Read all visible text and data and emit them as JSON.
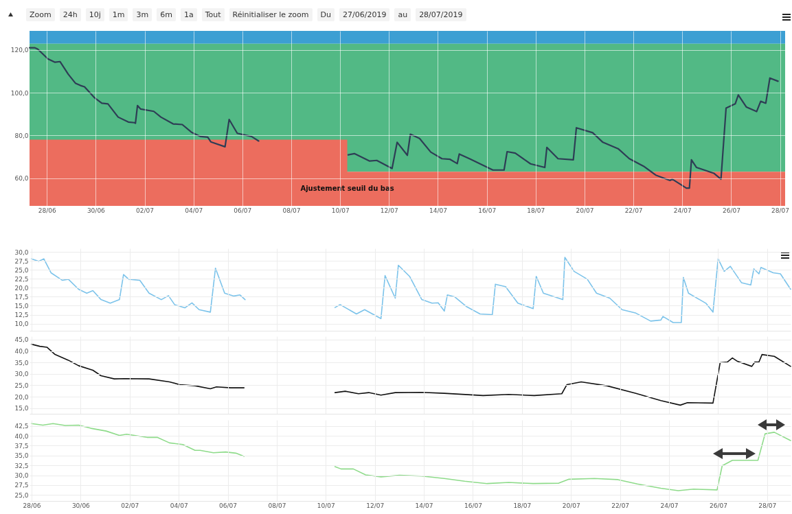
{
  "chart_data": [
    {
      "type": "line",
      "annotations": [
        "Zoom",
        "24h",
        "10j",
        "1m",
        "3m",
        "6m",
        "1a",
        "Tout",
        "Réinitialiser le zoom",
        "Du",
        "27/06/2019",
        "au",
        "28/07/2019"
      ],
      "xlim": [
        "2019-06-27T07:00",
        "2019-07-28T05:00"
      ],
      "xticks": [
        {
          "value": "2019-06-28",
          "label": "28/06"
        },
        {
          "value": "2019-06-30",
          "label": "30/06"
        },
        {
          "value": "2019-07-02",
          "label": "02/07"
        },
        {
          "value": "2019-07-04",
          "label": "04/07"
        },
        {
          "value": "2019-07-06",
          "label": "06/07"
        },
        {
          "value": "2019-07-08",
          "label": "08/07"
        },
        {
          "value": "2019-07-10",
          "label": "10/07"
        },
        {
          "value": "2019-07-12",
          "label": "12/07"
        },
        {
          "value": "2019-07-14",
          "label": "14/07"
        },
        {
          "value": "2019-07-16",
          "label": "16/07"
        },
        {
          "value": "2019-07-18",
          "label": "18/07"
        },
        {
          "value": "2019-07-20",
          "label": "20/07"
        },
        {
          "value": "2019-07-22",
          "label": "22/07"
        },
        {
          "value": "2019-07-24",
          "label": "24/07"
        },
        {
          "value": "2019-07-26",
          "label": "26/07"
        },
        {
          "value": "2019-07-28",
          "label": "28/07"
        }
      ],
      "ylim": [
        47,
        129
      ],
      "yticks": [
        {
          "value": 60,
          "label": "60,0"
        },
        {
          "value": 80,
          "label": "80,0"
        },
        {
          "value": 100,
          "label": "100,0"
        },
        {
          "value": 120,
          "label": "120,0"
        }
      ],
      "grid": true,
      "bands": [
        {
          "axis": "y",
          "from": 123,
          "to": 129,
          "color": "#3c9fd3"
        },
        {
          "axis": "y",
          "from": 63,
          "to": 123,
          "color": "#52b985"
        }
      ],
      "series": [
        {
          "type": "area",
          "name": "Ajustement seuil du bas",
          "color": "#ec6d5e",
          "x": [
            "2019-06-27T07:00",
            "2019-07-10T07:00",
            "2019-07-10T07:00",
            "2019-07-28T05:00"
          ],
          "values": [
            78,
            78,
            63,
            63
          ]
        },
        {
          "color": "#2e3d55",
          "x": [
            "2019-06-27T07:00",
            "2019-06-27T12:00",
            "2019-06-27T15:00",
            "2019-06-28T01:00",
            "2019-06-28T08:00",
            "2019-06-28T13:00",
            "2019-06-28T21:00",
            "2019-06-29T04:00",
            "2019-06-29T09:00",
            "2019-06-29T13:00",
            "2019-06-29T23:00",
            "2019-06-30T06:00",
            "2019-06-30T12:00",
            "2019-06-30T22:00",
            "2019-07-01T08:00",
            "2019-07-01T14:00",
            "2019-07-01T15:00",
            "2019-07-01T17:00",
            "2019-07-01T20:00",
            "2019-07-02T09:00",
            "2019-07-02T16:00",
            "2019-07-03T04:00",
            "2019-07-03T13:00",
            "2019-07-03T22:00",
            "2019-07-04T07:00",
            "2019-07-04T14:00",
            "2019-07-04T17:00",
            "2019-07-05T07:00",
            "2019-07-05T11:00",
            "2019-07-05T19:00",
            "2019-07-06T09:00",
            "2019-07-06T16:00",
            "2019-07-08T12:00",
            "2019-07-10T08:00",
            "2019-07-10T14:00",
            "2019-07-11T05:00",
            "2019-07-11T12:00",
            "2019-07-12T03:00",
            "2019-07-12T08:00",
            "2019-07-12T18:00",
            "2019-07-12T21:00",
            "2019-07-13T06:00",
            "2019-07-13T17:00",
            "2019-07-14T04:00",
            "2019-07-14T12:00",
            "2019-07-14T19:00",
            "2019-07-14T21:00",
            "2019-07-15T07:00",
            "2019-07-16T06:00",
            "2019-07-16T17:00",
            "2019-07-16T20:00",
            "2019-07-17T04:00",
            "2019-07-17T19:00",
            "2019-07-18T09:00",
            "2019-07-18T11:00",
            "2019-07-18T22:00",
            "2019-07-19T13:00",
            "2019-07-19T16:00",
            "2019-07-20T08:00",
            "2019-07-20T18:00",
            "2019-07-21T09:00",
            "2019-07-21T20:00",
            "2019-07-22T10:00",
            "2019-07-22T22:00",
            "2019-07-23T12:00",
            "2019-07-23T14:00",
            "2019-07-24T04:00",
            "2019-07-24T07:00",
            "2019-07-24T09:00",
            "2019-07-24T14:00",
            "2019-07-25T07:00",
            "2019-07-25T14:00",
            "2019-07-25T19:00",
            "2019-07-26T04:00",
            "2019-07-26T07:00",
            "2019-07-26T15:00",
            "2019-07-27T01:00",
            "2019-07-27T05:00",
            "2019-07-27T10:00",
            "2019-07-27T14:00",
            "2019-07-27T22:00"
          ],
          "values": [
            121.1,
            121.1,
            120.5,
            115.9,
            114.3,
            114.6,
            108.7,
            104.5,
            103.4,
            102.8,
            97.6,
            95.1,
            94.8,
            88.6,
            86.3,
            86.0,
            85.7,
            94.0,
            92.4,
            91.3,
            88.6,
            85.4,
            85.1,
            81.5,
            79.5,
            79.2,
            77.0,
            74.7,
            87.5,
            81.0,
            79.5,
            77.4,
            null,
            70.9,
            71.5,
            68.0,
            68.3,
            64.5,
            76.8,
            70.7,
            80.6,
            78.6,
            72.2,
            69.1,
            68.8,
            66.8,
            71.3,
            69.1,
            63.8,
            63.8,
            72.4,
            71.7,
            66.7,
            65.0,
            74.4,
            69.1,
            68.6,
            83.6,
            81.3,
            76.8,
            73.8,
            69.1,
            65.6,
            61.4,
            58.9,
            59.6,
            55.3,
            55.3,
            68.6,
            65.0,
            62.3,
            59.5,
            92.8,
            94.8,
            99.0,
            93.3,
            91.2,
            96.0,
            95.1,
            106.9,
            105.4
          ]
        }
      ]
    },
    {
      "type": "line",
      "tick_labels": "y",
      "grid": true,
      "xlim": [
        "2019-06-27T22:00",
        "2019-07-28T23:00"
      ],
      "xticks": [
        {
          "value": "2019-06-28",
          "label": null
        },
        {
          "value": "2019-06-30",
          "label": null
        },
        {
          "value": "2019-07-02",
          "label": null
        },
        {
          "value": "2019-07-04",
          "label": null
        },
        {
          "value": "2019-07-06",
          "label": null
        },
        {
          "value": "2019-07-08",
          "label": null
        },
        {
          "value": "2019-07-10",
          "label": null
        },
        {
          "value": "2019-07-12",
          "label": null
        },
        {
          "value": "2019-07-14",
          "label": null
        },
        {
          "value": "2019-07-16",
          "label": null
        },
        {
          "value": "2019-07-18",
          "label": null
        },
        {
          "value": "2019-07-20",
          "label": null
        },
        {
          "value": "2019-07-22",
          "label": null
        },
        {
          "value": "2019-07-24",
          "label": null
        },
        {
          "value": "2019-07-26",
          "label": null
        },
        {
          "value": "2019-07-28",
          "label": null
        }
      ],
      "ylim": [
        8,
        31
      ],
      "yticks": [
        {
          "value": 10,
          "label": "10,0"
        },
        {
          "value": 12.5,
          "label": "12,5"
        },
        {
          "value": 15,
          "label": "15,0"
        },
        {
          "value": 17.5,
          "label": "17,5"
        },
        {
          "value": 20,
          "label": "20,0"
        },
        {
          "value": 22.5,
          "label": "22,5"
        },
        {
          "value": 25,
          "label": "25,0"
        },
        {
          "value": 27.5,
          "label": "27,5"
        },
        {
          "value": 30,
          "label": "30,0"
        }
      ],
      "series": [
        {
          "color": "#7cc3ea",
          "x": [
            "2019-06-28T00:00",
            "2019-06-28T07:00",
            "2019-06-28T12:00",
            "2019-06-28T19:00",
            "2019-06-29T06:00",
            "2019-06-29T12:00",
            "2019-06-29T22:00",
            "2019-06-30T06:00",
            "2019-06-30T12:00",
            "2019-06-30T20:00",
            "2019-07-01T05:00",
            "2019-07-01T14:00",
            "2019-07-01T18:00",
            "2019-07-01T23:00",
            "2019-07-02T10:00",
            "2019-07-02T19:00",
            "2019-07-03T07:00",
            "2019-07-03T14:00",
            "2019-07-03T20:00",
            "2019-07-04T06:00",
            "2019-07-04T13:00",
            "2019-07-04T20:00",
            "2019-07-05T07:00",
            "2019-07-05T12:00",
            "2019-07-05T21:00",
            "2019-07-06T06:00",
            "2019-07-06T12:00",
            "2019-07-06T17:00",
            "2019-07-08T12:00",
            "2019-07-10T09:00",
            "2019-07-10T14:00",
            "2019-07-11T06:00",
            "2019-07-11T14:00",
            "2019-07-12T06:00",
            "2019-07-12T10:00",
            "2019-07-12T20:00",
            "2019-07-12T23:00",
            "2019-07-13T10:00",
            "2019-07-13T22:00",
            "2019-07-14T08:00",
            "2019-07-14T14:00",
            "2019-07-14T20:00",
            "2019-07-14T23:00",
            "2019-07-15T06:00",
            "2019-07-15T18:00",
            "2019-07-16T07:00",
            "2019-07-16T19:00",
            "2019-07-16T22:00",
            "2019-07-17T08:00",
            "2019-07-17T20:00",
            "2019-07-18T11:00",
            "2019-07-18T14:00",
            "2019-07-18T21:00",
            "2019-07-19T16:00",
            "2019-07-19T18:00",
            "2019-07-20T03:00",
            "2019-07-20T16:00",
            "2019-07-21T01:00",
            "2019-07-21T14:00",
            "2019-07-22T02:00",
            "2019-07-22T15:00",
            "2019-07-23T06:00",
            "2019-07-23T16:00",
            "2019-07-23T18:00",
            "2019-07-24T04:00",
            "2019-07-24T12:00",
            "2019-07-24T14:00",
            "2019-07-24T19:00",
            "2019-07-25T12:00",
            "2019-07-25T19:00",
            "2019-07-26T00:00",
            "2019-07-26T06:00",
            "2019-07-26T12:00",
            "2019-07-26T23:00",
            "2019-07-27T08:00",
            "2019-07-27T11:00",
            "2019-07-27T16:00",
            "2019-07-27T18:00",
            "2019-07-28T06:00",
            "2019-07-28T13:00",
            "2019-07-28T23:00"
          ],
          "values": [
            28.1,
            27.4,
            28.1,
            24.2,
            22.1,
            22.4,
            19.6,
            18.5,
            19.2,
            16.7,
            15.7,
            16.7,
            23.7,
            22.4,
            22.1,
            18.5,
            16.7,
            17.8,
            15.3,
            14.4,
            15.8,
            13.9,
            13.2,
            25.5,
            18.5,
            17.7,
            18.0,
            16.7,
            null,
            14.5,
            15.3,
            12.7,
            13.9,
            11.4,
            23.4,
            17.1,
            26.3,
            23.2,
            16.7,
            15.7,
            15.8,
            13.5,
            18.0,
            17.5,
            14.7,
            12.7,
            12.5,
            21.0,
            20.3,
            15.7,
            14.2,
            23.2,
            18.5,
            16.7,
            28.5,
            24.6,
            22.4,
            18.5,
            17.1,
            13.9,
            13.0,
            10.7,
            11.0,
            12.0,
            10.3,
            10.3,
            22.9,
            18.5,
            15.7,
            13.2,
            28.1,
            24.6,
            26.0,
            21.4,
            20.8,
            25.3,
            23.9,
            25.7,
            24.2,
            23.9,
            19.6
          ]
        }
      ]
    },
    {
      "type": "line",
      "tick_labels": "y",
      "grid": true,
      "xlim": [
        "2019-06-27T22:00",
        "2019-07-28T23:00"
      ],
      "xticks": [
        {
          "value": "2019-06-28",
          "label": null
        },
        {
          "value": "2019-06-30",
          "label": null
        },
        {
          "value": "2019-07-02",
          "label": null
        },
        {
          "value": "2019-07-04",
          "label": null
        },
        {
          "value": "2019-07-06",
          "label": null
        },
        {
          "value": "2019-07-08",
          "label": null
        },
        {
          "value": "2019-07-10",
          "label": null
        },
        {
          "value": "2019-07-12",
          "label": null
        },
        {
          "value": "2019-07-14",
          "label": null
        },
        {
          "value": "2019-07-16",
          "label": null
        },
        {
          "value": "2019-07-18",
          "label": null
        },
        {
          "value": "2019-07-20",
          "label": null
        },
        {
          "value": "2019-07-22",
          "label": null
        },
        {
          "value": "2019-07-24",
          "label": null
        },
        {
          "value": "2019-07-26",
          "label": null
        },
        {
          "value": "2019-07-28",
          "label": null
        }
      ],
      "ylim": [
        12.5,
        46.5
      ],
      "yticks": [
        {
          "value": 15,
          "label": "15,0"
        },
        {
          "value": 20,
          "label": "20,0"
        },
        {
          "value": 25,
          "label": "25,0"
        },
        {
          "value": 30,
          "label": "30,0"
        },
        {
          "value": 35,
          "label": "35,0"
        },
        {
          "value": 40,
          "label": "40,0"
        },
        {
          "value": 45,
          "label": "45,0"
        }
      ],
      "series": [
        {
          "color": "#111111",
          "x": [
            "2019-06-28T00:00",
            "2019-06-28T08:00",
            "2019-06-28T15:00",
            "2019-06-28T23:00",
            "2019-06-29T12:00",
            "2019-06-29T22:00",
            "2019-06-30T12:00",
            "2019-06-30T20:00",
            "2019-07-01T09:00",
            "2019-07-01T19:00",
            "2019-07-02T19:00",
            "2019-07-03T15:00",
            "2019-07-04T01:00",
            "2019-07-04T16:00",
            "2019-07-05T07:00",
            "2019-07-05T13:00",
            "2019-07-06T03:00",
            "2019-07-06T16:00",
            "2019-07-08T12:00",
            "2019-07-10T09:00",
            "2019-07-10T19:00",
            "2019-07-11T08:00",
            "2019-07-11T18:00",
            "2019-07-12T06:00",
            "2019-07-12T20:00",
            "2019-07-13T22:00",
            "2019-07-14T20:00",
            "2019-07-16T10:00",
            "2019-07-17T11:00",
            "2019-07-18T12:00",
            "2019-07-19T15:00",
            "2019-07-19T20:00",
            "2019-07-20T10:00",
            "2019-07-21T11:00",
            "2019-07-22T15:00",
            "2019-07-23T16:00",
            "2019-07-24T11:00",
            "2019-07-24T18:00",
            "2019-07-25T19:00",
            "2019-07-26T02:00",
            "2019-07-26T09:00",
            "2019-07-26T14:00",
            "2019-07-26T19:00",
            "2019-07-27T09:00",
            "2019-07-27T12:00",
            "2019-07-27T16:00",
            "2019-07-27T19:00",
            "2019-07-28T07:00",
            "2019-07-28T23:00"
          ],
          "values": [
            43.0,
            42.1,
            41.7,
            38.5,
            36.0,
            33.6,
            31.6,
            29.2,
            27.8,
            27.9,
            27.8,
            26.5,
            25.3,
            24.8,
            23.5,
            24.3,
            23.9,
            23.9,
            null,
            21.8,
            22.4,
            21.3,
            21.8,
            20.7,
            21.8,
            21.9,
            21.5,
            20.5,
            21.0,
            20.5,
            21.3,
            25.3,
            26.5,
            24.8,
            21.5,
            18.3,
            16.3,
            17.4,
            17.2,
            34.9,
            35.2,
            37.0,
            35.5,
            33.3,
            35.2,
            35.2,
            38.5,
            37.7,
            33.3
          ]
        }
      ]
    },
    {
      "type": "line",
      "grid": true,
      "xlim": [
        "2019-06-27T22:00",
        "2019-07-28T23:00"
      ],
      "xticks": [
        {
          "value": "2019-06-28",
          "label": "28/06"
        },
        {
          "value": "2019-06-30",
          "label": "30/06"
        },
        {
          "value": "2019-07-02",
          "label": "02/07"
        },
        {
          "value": "2019-07-04",
          "label": "04/07"
        },
        {
          "value": "2019-07-06",
          "label": "06/07"
        },
        {
          "value": "2019-07-08",
          "label": "08/07"
        },
        {
          "value": "2019-07-10",
          "label": "10/07"
        },
        {
          "value": "2019-07-12",
          "label": "12/07"
        },
        {
          "value": "2019-07-14",
          "label": "14/07"
        },
        {
          "value": "2019-07-16",
          "label": "16/07"
        },
        {
          "value": "2019-07-18",
          "label": "18/07"
        },
        {
          "value": "2019-07-20",
          "label": "20/07"
        },
        {
          "value": "2019-07-22",
          "label": "22/07"
        },
        {
          "value": "2019-07-24",
          "label": "24/07"
        },
        {
          "value": "2019-07-26",
          "label": "26/07"
        },
        {
          "value": "2019-07-28",
          "label": "28/07"
        }
      ],
      "ylim": [
        23.5,
        44
      ],
      "yticks": [
        {
          "value": 25,
          "label": "25,0"
        },
        {
          "value": 27.5,
          "label": "27,5"
        },
        {
          "value": 30,
          "label": "30,0"
        },
        {
          "value": 32.5,
          "label": "32,5"
        },
        {
          "value": 35,
          "label": "35,0"
        },
        {
          "value": 37.5,
          "label": "37,5"
        },
        {
          "value": 40,
          "label": "40,0"
        },
        {
          "value": 42.5,
          "label": "42,5"
        }
      ],
      "series": [
        {
          "color": "#8edb8a",
          "x": [
            "2019-06-28T00:00",
            "2019-06-28T11:00",
            "2019-06-28T21:00",
            "2019-06-29T09:00",
            "2019-06-29T22:00",
            "2019-06-30T10:00",
            "2019-07-01T01:00",
            "2019-07-01T14:00",
            "2019-07-01T21:00",
            "2019-07-02T17:00",
            "2019-07-03T03:00",
            "2019-07-03T15:00",
            "2019-07-04T04:00",
            "2019-07-04T16:00",
            "2019-07-04T21:00",
            "2019-07-05T10:00",
            "2019-07-05T22:00",
            "2019-07-06T08:00",
            "2019-07-06T16:00",
            "2019-07-08T12:00",
            "2019-07-10T09:00",
            "2019-07-10T15:00",
            "2019-07-11T03:00",
            "2019-07-11T15:00",
            "2019-07-12T06:00",
            "2019-07-13T00:00",
            "2019-07-13T22:00",
            "2019-07-14T20:00",
            "2019-07-15T16:00",
            "2019-07-16T14:00",
            "2019-07-17T11:00",
            "2019-07-18T11:00",
            "2019-07-19T12:00",
            "2019-07-19T22:00",
            "2019-07-20T23:00",
            "2019-07-21T22:00",
            "2019-07-22T17:00",
            "2019-07-23T16:00",
            "2019-07-24T09:00",
            "2019-07-25T00:00",
            "2019-07-25T23:00",
            "2019-07-26T04:00",
            "2019-07-26T14:00",
            "2019-07-27T15:00",
            "2019-07-27T22:00",
            "2019-07-28T07:00",
            "2019-07-28T23:00"
          ],
          "values": [
            43.1,
            42.7,
            43.1,
            42.6,
            42.7,
            41.9,
            41.2,
            40.1,
            40.4,
            39.6,
            39.6,
            38.2,
            37.8,
            36.3,
            36.3,
            35.7,
            35.9,
            35.6,
            34.8,
            null,
            32.2,
            31.6,
            31.6,
            30.1,
            29.6,
            30.0,
            29.8,
            29.2,
            28.5,
            27.9,
            28.2,
            27.9,
            28.0,
            29.0,
            29.2,
            28.9,
            27.8,
            26.7,
            26.1,
            26.5,
            26.3,
            32.4,
            33.8,
            33.8,
            40.5,
            40.9,
            38.8
          ]
        }
      ]
    }
  ]
}
